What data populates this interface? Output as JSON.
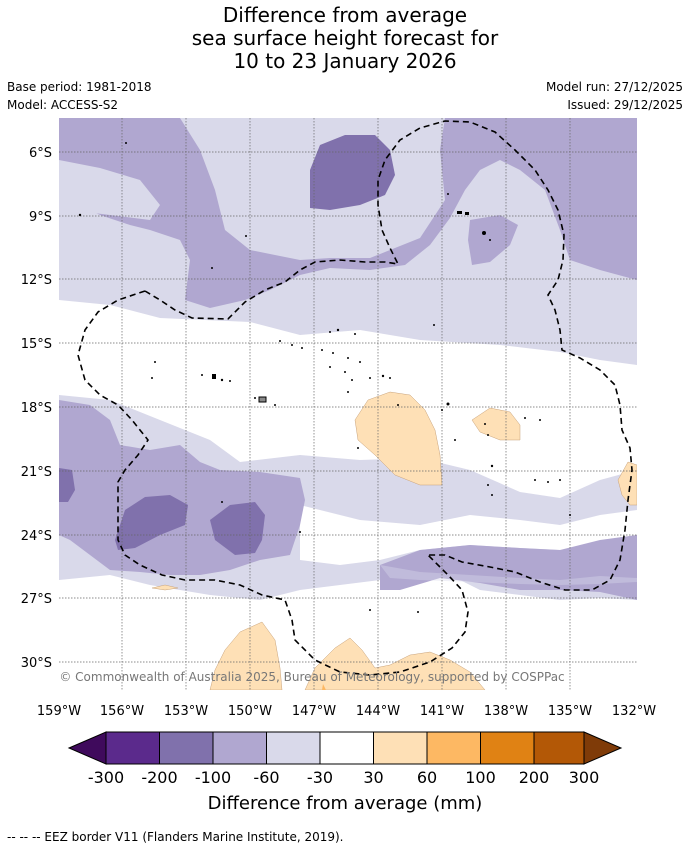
{
  "title": {
    "line1": "Difference from average",
    "line2": "sea surface height forecast for",
    "line3": "10 to 23 January 2026"
  },
  "meta": {
    "base_period": "Base period: 1981-2018",
    "model": "Model: ACCESS-S2",
    "model_run": "Model run: 27/12/2025",
    "issued": "Issued: 29/12/2025"
  },
  "map": {
    "lat_labels": [
      "6°S",
      "9°S",
      "12°S",
      "15°S",
      "18°S",
      "21°S",
      "24°S",
      "27°S",
      "30°S"
    ],
    "lon_labels": [
      "159°W",
      "156°W",
      "153°W",
      "150°W",
      "147°W",
      "144°W",
      "141°W",
      "138°W",
      "135°W",
      "132°W"
    ],
    "copyright": "© Commonwealth of Australia 2025, Bureau of Meteorology, supported by COSPPac"
  },
  "legend": {
    "ticks": [
      "-300",
      "-200",
      "-100",
      "-60",
      "-30",
      "30",
      "60",
      "100",
      "200",
      "300"
    ],
    "label": "Difference from average (mm)",
    "colors": [
      "#3f0a5c",
      "#5b2a8c",
      "#8071ac",
      "#b0a7d0",
      "#d9d9ea",
      "#ffffff",
      "#fee0b6",
      "#fdb863",
      "#e08214",
      "#b35806",
      "#7f3b08"
    ]
  },
  "footer": {
    "text": "--  --  -- EEZ border V11 (Flanders Marine Institute, 2019)."
  }
}
